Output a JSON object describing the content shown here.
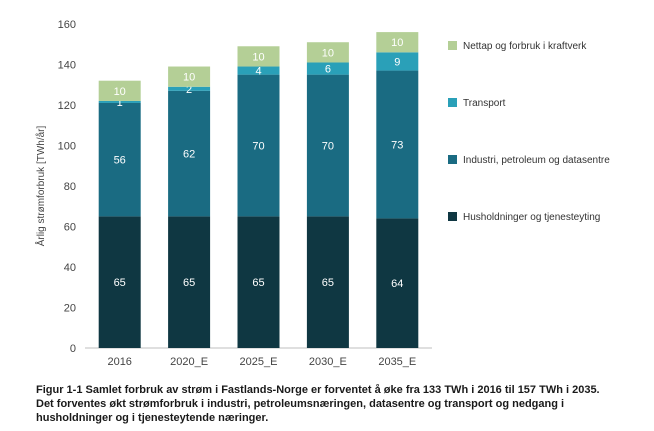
{
  "chart_data": {
    "type": "stacked-bar",
    "categories": [
      "2016",
      "2020_E",
      "2025_E",
      "2030_E",
      "2035_E"
    ],
    "ylabel": "Årlig strømforbruk [TWh/år]",
    "ylim": [
      0,
      160
    ],
    "yticks": [
      0,
      20,
      40,
      60,
      80,
      100,
      120,
      140,
      160
    ],
    "grid": false,
    "legend_position": "right",
    "series": [
      {
        "name": "Husholdninger og tjenesteyting",
        "color": "#0f3742",
        "values": [
          65,
          65,
          65,
          65,
          64
        ]
      },
      {
        "name": "Industri, petroleum og datasentre",
        "color": "#1a6b82",
        "values": [
          56,
          62,
          70,
          70,
          73
        ]
      },
      {
        "name": "Transport",
        "color": "#2aa0b8",
        "values": [
          1,
          2,
          4,
          6,
          9
        ]
      },
      {
        "name": "Nettap og forbruk i kraftverk",
        "color": "#b4cf96",
        "values": [
          10,
          10,
          10,
          10,
          10
        ]
      }
    ]
  },
  "caption": {
    "line1": "Figur 1-1 Samlet forbruk av strøm i Fastlands-Norge er forventet å øke fra 133 TWh i 2016 til 157 TWh i 2035.",
    "line2": "Det forventes økt strømforbruk i industri, petroleumsnæringen, datasentre og transport og nedgang i",
    "line3": "husholdninger og i tjenesteytende næringer."
  }
}
